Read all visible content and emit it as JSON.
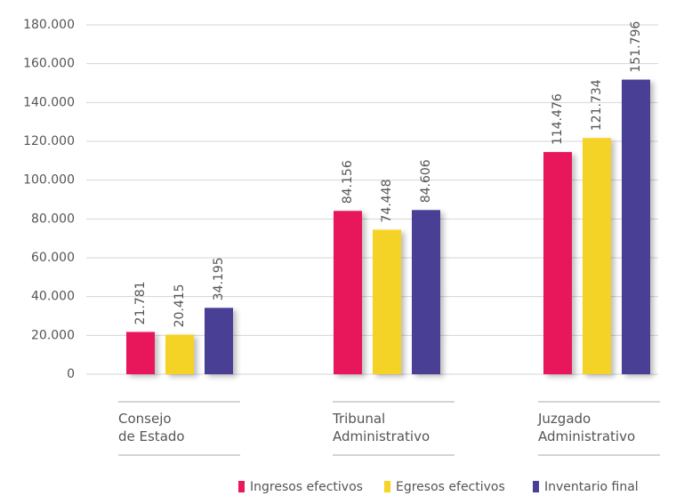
{
  "chart_data": {
    "type": "bar",
    "categories": [
      "Consejo\nde Estado",
      "Tribunal\nAdministrativo",
      "Juzgado\nAdministrativo"
    ],
    "series": [
      {
        "name": "Ingresos efectivos",
        "color": "#e8185a",
        "values": [
          21781,
          84156,
          114476
        ],
        "value_labels": [
          "21.781",
          "84.156",
          "114.476"
        ]
      },
      {
        "name": "Egresos efectivos",
        "color": "#f5d327",
        "values": [
          20415,
          74448,
          121734
        ],
        "value_labels": [
          "20.415",
          "74.448",
          "121.734"
        ]
      },
      {
        "name": "Inventario final",
        "color": "#4a3f96",
        "values": [
          34195,
          84606,
          151796
        ],
        "value_labels": [
          "34.195",
          "84.606",
          "151.796"
        ]
      }
    ],
    "ylim": [
      0,
      180000
    ],
    "yticks": [
      0,
      {
        "value": 20000,
        "label": "20.000"
      },
      {
        "value": 40000,
        "label": "40.000"
      },
      {
        "value": 60000,
        "label": "60.000"
      },
      {
        "value": 80000,
        "label": "80.000"
      },
      {
        "value": 100000,
        "label": "100.000"
      },
      {
        "value": 120000,
        "label": "120.000"
      },
      {
        "value": 140000,
        "label": "140.000"
      },
      {
        "value": 160000,
        "label": "160.000"
      },
      {
        "value": 180000,
        "label": "180.000"
      }
    ],
    "grid": true,
    "legend": "bottom"
  }
}
